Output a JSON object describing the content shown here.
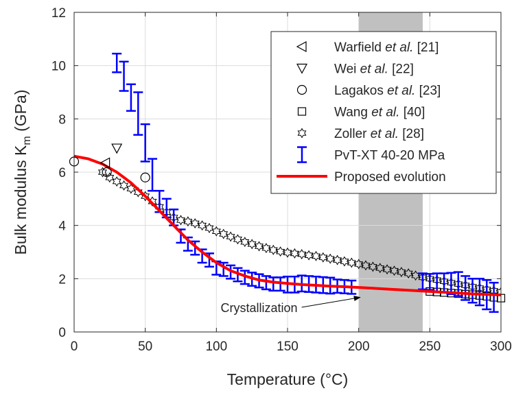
{
  "chart_data": {
    "type": "scatter",
    "xlabel": "Temperature (°C)",
    "ylabel": "Bulk modulus K",
    "ylabel_sub": "m",
    "ylabel_unit": " (GPa)",
    "xlim": [
      0,
      300
    ],
    "ylim": [
      0,
      12
    ],
    "xticks": [
      0,
      50,
      100,
      150,
      200,
      250,
      300
    ],
    "yticks": [
      0,
      2,
      4,
      6,
      8,
      10,
      12
    ],
    "xtick_labels": [
      "0",
      "50",
      "100",
      "150",
      "200",
      "250",
      "300"
    ],
    "ytick_labels": [
      "0",
      "2",
      "4",
      "6",
      "8",
      "10",
      "12"
    ],
    "grid": true,
    "legend_position": "top-right",
    "legend": [
      {
        "pre": "Warfield ",
        "em": "et al.",
        "post": " [21]",
        "marker": "triangle-left",
        "color": "#000000"
      },
      {
        "pre": "Wei ",
        "em": "et al.",
        "post": " [22]",
        "marker": "triangle-down",
        "color": "#000000"
      },
      {
        "pre": "Lagakos ",
        "em": "et al.",
        "post": " [23]",
        "marker": "circle",
        "color": "#000000"
      },
      {
        "pre": "Wang ",
        "em": "et al.",
        "post": " [40]",
        "marker": "square",
        "color": "#000000"
      },
      {
        "pre": "Zoller ",
        "em": "et al.",
        "post": " [28]",
        "marker": "hexagram",
        "color": "#000000"
      },
      {
        "pre": "PvT-XT 40-20 MPa",
        "em": "",
        "post": "",
        "marker": "errorbar",
        "color": "#0000ff"
      },
      {
        "pre": "Proposed evolution",
        "em": "",
        "post": "",
        "marker": "line",
        "color": "#ff0000"
      }
    ],
    "series": [
      {
        "name": "Warfield et al. [21]",
        "marker": "triangle-left",
        "x": [
          22
        ],
        "y": [
          6.35
        ]
      },
      {
        "name": "Wei et al. [22]",
        "marker": "triangle-down",
        "x": [
          30
        ],
        "y": [
          6.9
        ]
      },
      {
        "name": "Lagakos et al. [23]",
        "marker": "circle",
        "x": [
          0,
          23,
          50
        ],
        "y": [
          6.4,
          6.0,
          5.8
        ]
      },
      {
        "name": "Wang et al. [40]",
        "marker": "square",
        "x": [
          250,
          255,
          260,
          265,
          270,
          275,
          280,
          285,
          290,
          295,
          300
        ],
        "y": [
          1.52,
          1.5,
          1.48,
          1.46,
          1.44,
          1.42,
          1.4,
          1.37,
          1.34,
          1.3,
          1.27
        ]
      },
      {
        "name": "Zoller et al. [28]",
        "marker": "hexagram",
        "x": [
          20,
          25,
          30,
          35,
          40,
          45,
          50,
          55,
          60,
          65,
          70,
          75,
          80,
          85,
          90,
          95,
          100,
          105,
          110,
          115,
          120,
          125,
          130,
          135,
          140,
          145,
          150,
          155,
          160,
          165,
          170,
          175,
          180,
          185,
          190,
          195,
          200,
          205,
          210,
          215,
          220,
          225,
          230,
          235,
          240,
          245,
          250,
          255,
          260,
          265,
          270,
          275,
          280,
          285,
          290,
          295,
          300
        ],
        "y": [
          6.0,
          5.8,
          5.65,
          5.5,
          5.38,
          5.25,
          5.1,
          4.9,
          4.7,
          4.5,
          4.3,
          4.2,
          4.15,
          4.08,
          4.0,
          3.9,
          3.78,
          3.68,
          3.58,
          3.48,
          3.38,
          3.3,
          3.22,
          3.15,
          3.08,
          3.02,
          2.98,
          2.95,
          2.92,
          2.88,
          2.85,
          2.8,
          2.75,
          2.7,
          2.65,
          2.6,
          2.55,
          2.5,
          2.45,
          2.4,
          2.35,
          2.3,
          2.25,
          2.2,
          2.12,
          2.05,
          2.0,
          1.95,
          1.9,
          1.85,
          1.8,
          1.75,
          1.7,
          1.65,
          1.6,
          1.55,
          1.5
        ]
      },
      {
        "name": "PvT-XT 40-20 MPa",
        "marker": "errorbar",
        "x": [
          30,
          35,
          40,
          45,
          50,
          55,
          60,
          65,
          70,
          75,
          80,
          85,
          90,
          95,
          100,
          105,
          110,
          115,
          120,
          125,
          130,
          135,
          140,
          145,
          150,
          155,
          160,
          165,
          170,
          175,
          180,
          185,
          190,
          195,
          245,
          250,
          255,
          260,
          265,
          270,
          275,
          280,
          285,
          290,
          295
        ],
        "y": [
          10.1,
          9.6,
          8.8,
          8.2,
          7.1,
          5.9,
          4.9,
          4.65,
          4.3,
          3.6,
          3.3,
          3.15,
          2.85,
          2.7,
          2.4,
          2.35,
          2.25,
          2.15,
          2.05,
          1.98,
          1.92,
          1.85,
          1.8,
          1.8,
          1.78,
          1.78,
          1.82,
          1.8,
          1.78,
          1.76,
          1.74,
          1.72,
          1.7,
          1.68,
          1.9,
          1.88,
          1.85,
          1.85,
          1.82,
          1.8,
          1.65,
          1.55,
          1.5,
          1.4,
          1.3
        ],
        "err": [
          0.35,
          0.55,
          0.5,
          0.8,
          0.7,
          0.6,
          0.4,
          0.35,
          0.3,
          0.25,
          0.25,
          0.25,
          0.25,
          0.25,
          0.25,
          0.25,
          0.25,
          0.25,
          0.25,
          0.25,
          0.25,
          0.25,
          0.25,
          0.25,
          0.3,
          0.3,
          0.3,
          0.3,
          0.3,
          0.3,
          0.3,
          0.25,
          0.25,
          0.25,
          0.3,
          0.3,
          0.35,
          0.35,
          0.4,
          0.45,
          0.45,
          0.45,
          0.5,
          0.55,
          0.55
        ]
      },
      {
        "name": "Proposed evolution",
        "marker": "line",
        "x": [
          0,
          10,
          20,
          30,
          40,
          50,
          60,
          70,
          80,
          90,
          100,
          110,
          120,
          130,
          140,
          150,
          160,
          170,
          180,
          190,
          200,
          210,
          220,
          230,
          240,
          250,
          260,
          270,
          280,
          290,
          300
        ],
        "y": [
          6.6,
          6.5,
          6.3,
          6.0,
          5.6,
          5.1,
          4.55,
          4.0,
          3.45,
          3.0,
          2.6,
          2.3,
          2.1,
          1.95,
          1.87,
          1.82,
          1.78,
          1.75,
          1.72,
          1.7,
          1.67,
          1.64,
          1.61,
          1.58,
          1.55,
          1.52,
          1.49,
          1.46,
          1.43,
          1.41,
          1.39
        ]
      }
    ],
    "shaded_region": {
      "x": [
        200,
        245
      ],
      "color": "#c0c0c0"
    },
    "annotation": {
      "text": "Crystallization",
      "text_x": 130,
      "text_y": 0.9,
      "arrow_to_x": 201,
      "arrow_to_y": 1.3
    }
  }
}
